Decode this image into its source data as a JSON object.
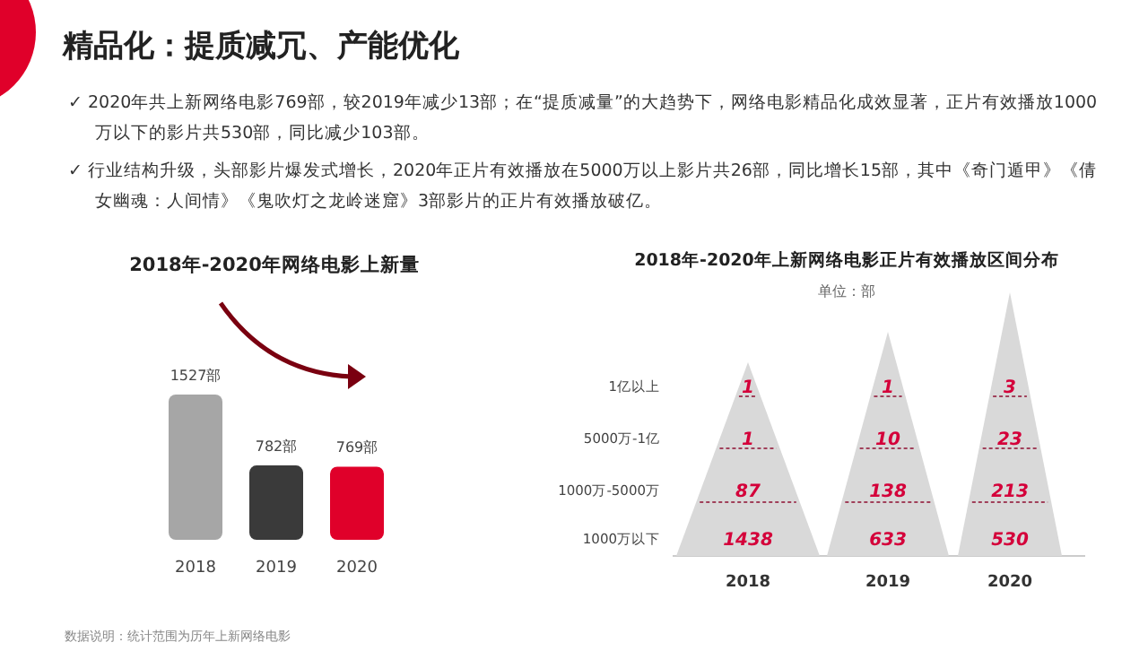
{
  "chart_data": [
    {
      "type": "other",
      "title": "精品化：提质减冗、产能优化",
      "annotations": [
        "✓ 2020年共上新网络电影769部，较2019年减少13部；在“提质减量”的大趋势下，网络电影精品化成效显著，正片有效播放1000万以下的影片共530部，同比减少103部。",
        "✓ 行业结构升级，头部影片爆发式增长，2020年正片有效播放在5000万以上影片共26部，同比增长15部，其中《奇门遁甲》《倩女幽魂：人间情》《鬼吹灯之龙岭迷窟》3部影片的正片有效播放破亿。"
      ]
    },
    {
      "type": "bar",
      "title": "2018年-2020年网络电影上新量",
      "categories": [
        "2018",
        "2019",
        "2020"
      ],
      "values": [
        1527,
        782,
        769
      ],
      "colors": [
        "#a6a6a6",
        "#3a3a3a",
        "#e0002a"
      ],
      "value_labels": [
        "1527部",
        "782部",
        "769部"
      ],
      "annotations": [
        "数据说明：统计范围为历年上新网络电影"
      ]
    },
    {
      "type": "other",
      "title": "2018年-2020年上新网络电影正片有效播放区间分布",
      "subtitle": "单位：部",
      "categories": [
        "2018",
        "2019",
        "2020"
      ],
      "data_labels": true,
      "series": [
        {
          "name": "1亿以上",
          "values": [
            1,
            1,
            3
          ]
        },
        {
          "name": "5000万-1亿",
          "values": [
            1,
            10,
            23
          ]
        },
        {
          "name": "1000万-5000万",
          "values": [
            87,
            138,
            213
          ]
        },
        {
          "name": "1000万以下",
          "values": [
            1438,
            633,
            530
          ]
        }
      ]
    }
  ]
}
